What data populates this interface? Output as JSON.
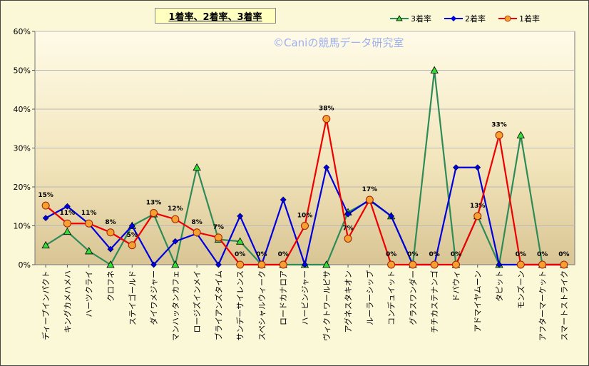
{
  "chart_data": {
    "type": "line",
    "title": "1着率、2着率、3着率",
    "watermark": "©Caniの競馬データ研究室",
    "xlabel": "",
    "ylabel": "",
    "ylim": [
      0,
      60
    ],
    "y_ticks": [
      "0%",
      "10%",
      "20%",
      "30%",
      "40%",
      "50%",
      "60%"
    ],
    "legend_position": "top-right",
    "grid": "horizontal",
    "categories": [
      "ディープインパクト",
      "キングカメハメハ",
      "ハーツクライ",
      "クロフネ",
      "ステイゴールド",
      "ダイワメジャー",
      "マンハッタンカフェ",
      "ロージズインメイ",
      "ブライアンズタイム",
      "サンデーサイレンス",
      "スペシャルウィーク",
      "ロードカナロア",
      "ハービンジャー",
      "ヴィクトワールピサ",
      "アグネスタキオン",
      "ルーラーシップ",
      "コンデュイット",
      "グラスワンダー",
      "チチカステナンゴ",
      "ドバウィ",
      "アドマイヤムーン",
      "タピット",
      "モンズーン",
      "アフターマーケット",
      "スマートストライク"
    ],
    "series": [
      {
        "name": "3着率",
        "color": "#2e8b57",
        "marker": "triangle",
        "marker_fill": "#33dd33",
        "values": [
          5,
          8.5,
          3.5,
          0,
          10,
          13,
          0,
          25,
          6.5,
          6,
          0,
          0,
          0,
          0,
          13.5,
          16.5,
          12.5,
          0,
          50,
          0,
          12.5,
          0,
          33.3,
          0,
          0
        ]
      },
      {
        "name": "2着率",
        "color": "#0000dd",
        "marker": "diamond",
        "marker_fill": "#0000dd",
        "values": [
          12,
          15,
          10.5,
          4,
          10,
          0,
          6,
          8,
          0,
          12.5,
          0,
          16.7,
          0,
          25,
          13,
          16.7,
          12.5,
          0,
          0,
          25,
          25,
          0,
          0,
          0,
          0
        ]
      },
      {
        "name": "1着率",
        "color": "#ee0000",
        "marker": "circle",
        "marker_fill": "#f5a030",
        "values": [
          15.2,
          10.6,
          10.6,
          8.3,
          5,
          13.3,
          11.7,
          8.3,
          7,
          0,
          0,
          0,
          10,
          37.5,
          6.7,
          16.7,
          0,
          0,
          0,
          0,
          12.5,
          33.3,
          0,
          0,
          0
        ]
      }
    ],
    "data_labels": [
      "15%",
      "11%",
      "11%",
      "8%",
      "5%",
      "13%",
      "12%",
      "8%",
      "7%",
      "0%",
      "0%",
      "0%",
      "10%",
      "38%",
      "7%",
      "17%",
      "0%",
      "0%",
      "0%",
      "0%",
      "13%",
      "33%",
      "0%",
      "0%",
      "0%"
    ]
  }
}
